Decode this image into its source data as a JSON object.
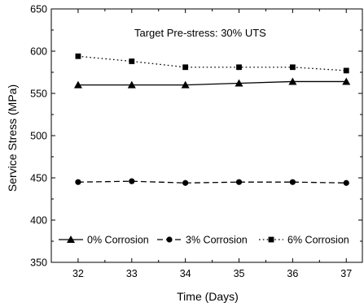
{
  "chart_data": {
    "type": "line",
    "title": "",
    "annotation": "Target Pre-stress: 30% UTS",
    "xlabel": "Time (Days)",
    "ylabel": "Service Stress (MPa)",
    "xlim": [
      31.5,
      37.3
    ],
    "ylim": [
      350,
      650
    ],
    "x_ticks": [
      32,
      33,
      34,
      35,
      36,
      37
    ],
    "y_ticks": [
      350,
      400,
      450,
      500,
      550,
      600,
      650
    ],
    "grid": false,
    "legend_position": "bottom",
    "x": [
      32,
      33,
      34,
      35,
      36,
      37
    ],
    "series": [
      {
        "name": "0% Corrosion",
        "values": [
          560,
          560,
          560,
          562,
          564,
          564
        ],
        "line_style": "solid",
        "marker": "triangle",
        "color": "#000000"
      },
      {
        "name": "3% Corrosion",
        "values": [
          445,
          446,
          444,
          445,
          445,
          444
        ],
        "line_style": "dashed",
        "marker": "circle",
        "color": "#000000"
      },
      {
        "name": "6% Corrosion",
        "values": [
          594,
          588,
          581,
          581,
          581,
          577
        ],
        "line_style": "dotted",
        "marker": "square",
        "color": "#000000"
      }
    ]
  }
}
